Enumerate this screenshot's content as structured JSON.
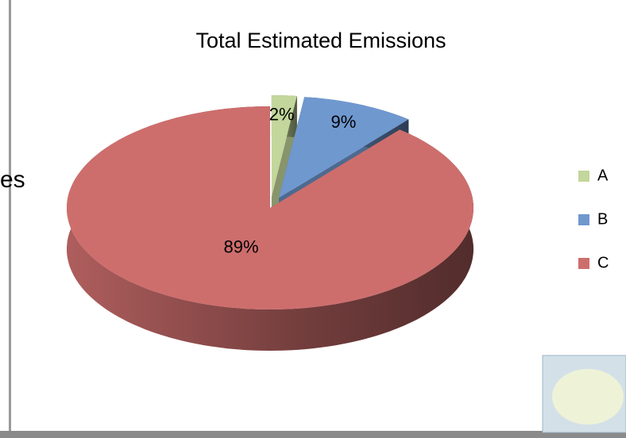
{
  "chart_data": {
    "type": "pie",
    "title": "Total Estimated Emissions",
    "categories": [
      "A",
      "B",
      "C"
    ],
    "values": [
      2,
      9,
      89
    ],
    "value_labels": [
      "2%",
      "9%",
      "89%"
    ],
    "colors": [
      "#c3d69b",
      "#6f98cf",
      "#cd6e6d"
    ],
    "exploded": [
      true,
      true,
      false
    ],
    "legend": "right"
  },
  "page_fragment": "es"
}
